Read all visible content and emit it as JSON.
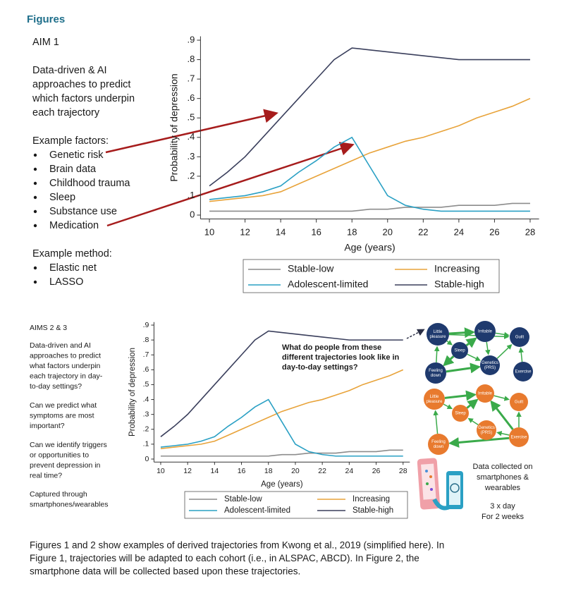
{
  "heading": "Figures",
  "aim1": {
    "title": "AIM 1",
    "description": [
      "Data-driven & AI",
      "approaches to predict",
      "which factors underpin",
      "each trajectory"
    ],
    "factors_title": "Example factors:",
    "factors": [
      "Genetic risk",
      "Brain data",
      "Childhood trauma",
      "Sleep",
      "Substance use",
      "Medication"
    ],
    "method_title": "Example method:",
    "methods": [
      "Elastic net",
      "LASSO"
    ]
  },
  "chart_data": [
    {
      "type": "line",
      "y_label": "Probability of depression",
      "x_label": "Age (years)",
      "x": [
        10,
        11,
        12,
        13,
        14,
        15,
        16,
        17,
        18,
        19,
        20,
        21,
        22,
        23,
        24,
        25,
        26,
        27,
        28
      ],
      "xlim": [
        9.5,
        28.5
      ],
      "xticks": [
        10,
        12,
        14,
        16,
        18,
        20,
        22,
        24,
        26,
        28
      ],
      "ylim": [
        -0.02,
        0.92
      ],
      "yticks": [
        0,
        {
          "value": 0.1,
          "label": ".1"
        },
        {
          "value": 0.2,
          "label": ".2"
        },
        {
          "value": 0.3,
          "label": ".3"
        },
        {
          "value": 0.4,
          "label": ".4"
        },
        {
          "value": 0.5,
          "label": ".5"
        },
        {
          "value": 0.6,
          "label": ".6"
        },
        {
          "value": 0.7,
          "label": ".7"
        },
        {
          "value": 0.8,
          "label": ".8"
        },
        {
          "value": 0.9,
          "label": ".9"
        }
      ],
      "series": [
        {
          "name": "Stable-low",
          "color": "#8c8c8c",
          "values": [
            0.02,
            0.02,
            0.02,
            0.02,
            0.02,
            0.02,
            0.02,
            0.02,
            0.02,
            0.03,
            0.03,
            0.04,
            0.04,
            0.04,
            0.05,
            0.05,
            0.05,
            0.06,
            0.06
          ]
        },
        {
          "name": "Increasing",
          "color": "#e8a33a",
          "values": [
            0.07,
            0.08,
            0.09,
            0.1,
            0.12,
            0.16,
            0.2,
            0.24,
            0.28,
            0.32,
            0.35,
            0.38,
            0.4,
            0.43,
            0.46,
            0.5,
            0.53,
            0.56,
            0.6
          ]
        },
        {
          "name": "Adolescent-limited",
          "color": "#2aa0c4",
          "values": [
            0.08,
            0.09,
            0.1,
            0.12,
            0.15,
            0.22,
            0.28,
            0.35,
            0.4,
            0.25,
            0.1,
            0.05,
            0.03,
            0.02,
            0.02,
            0.02,
            0.02,
            0.02,
            0.02
          ]
        },
        {
          "name": "Stable-high",
          "color": "#3a3f5c",
          "values": [
            0.15,
            0.22,
            0.3,
            0.4,
            0.5,
            0.6,
            0.7,
            0.8,
            0.86,
            0.85,
            0.84,
            0.83,
            0.82,
            0.81,
            0.8,
            0.8,
            0.8,
            0.8,
            0.8
          ]
        }
      ]
    },
    {
      "type": "line",
      "y_label": "Probability of depression",
      "x_label": "Age (years)",
      "annotation": [
        "What do people from these",
        "different trajectories look like in",
        "day-to-day settings?"
      ],
      "x": [
        10,
        11,
        12,
        13,
        14,
        15,
        16,
        17,
        18,
        19,
        20,
        21,
        22,
        23,
        24,
        25,
        26,
        27,
        28
      ],
      "xlim": [
        9.5,
        28.5
      ],
      "xticks": [
        10,
        12,
        14,
        16,
        18,
        20,
        22,
        24,
        26,
        28
      ],
      "ylim": [
        -0.02,
        0.92
      ],
      "yticks": [
        0,
        {
          "value": 0.1,
          "label": ".1"
        },
        {
          "value": 0.2,
          "label": ".2"
        },
        {
          "value": 0.3,
          "label": ".3"
        },
        {
          "value": 0.4,
          "label": ".4"
        },
        {
          "value": 0.5,
          "label": ".5"
        },
        {
          "value": 0.6,
          "label": ".6"
        },
        {
          "value": 0.7,
          "label": ".7"
        },
        {
          "value": 0.8,
          "label": ".8"
        },
        {
          "value": 0.9,
          "label": ".9"
        }
      ],
      "series": [
        {
          "name": "Stable-low",
          "color": "#8c8c8c",
          "values": [
            0.02,
            0.02,
            0.02,
            0.02,
            0.02,
            0.02,
            0.02,
            0.02,
            0.02,
            0.03,
            0.03,
            0.04,
            0.04,
            0.04,
            0.05,
            0.05,
            0.05,
            0.06,
            0.06
          ]
        },
        {
          "name": "Increasing",
          "color": "#e8a33a",
          "values": [
            0.07,
            0.08,
            0.09,
            0.1,
            0.12,
            0.16,
            0.2,
            0.24,
            0.28,
            0.32,
            0.35,
            0.38,
            0.4,
            0.43,
            0.46,
            0.5,
            0.53,
            0.56,
            0.6
          ]
        },
        {
          "name": "Adolescent-limited",
          "color": "#2aa0c4",
          "values": [
            0.08,
            0.09,
            0.1,
            0.12,
            0.15,
            0.22,
            0.28,
            0.35,
            0.4,
            0.25,
            0.1,
            0.05,
            0.03,
            0.02,
            0.02,
            0.02,
            0.02,
            0.02,
            0.02
          ]
        },
        {
          "name": "Stable-high",
          "color": "#3a3f5c",
          "values": [
            0.15,
            0.22,
            0.3,
            0.4,
            0.5,
            0.6,
            0.7,
            0.8,
            0.86,
            0.85,
            0.84,
            0.83,
            0.82,
            0.81,
            0.8,
            0.8,
            0.8,
            0.8,
            0.8
          ]
        }
      ]
    }
  ],
  "aims23": {
    "title": "AIMS 2 & 3",
    "paragraphs": [
      [
        "Data-driven and AI",
        "approaches to predict",
        "what factors underpin",
        "each trajectory in day-",
        "to-day settings?"
      ],
      [
        "Can we predict what",
        "symptoms are most",
        "important?"
      ],
      [
        "Can we identify triggers",
        "or opportunities to",
        "prevent depression in",
        "real time?"
      ],
      [
        "Captured through",
        "smartphones/wearables"
      ]
    ]
  },
  "network": {
    "top": [
      [
        "Little",
        "pleasure"
      ],
      [
        "Irritable"
      ],
      [
        "Guilt"
      ],
      [
        "Sleep"
      ],
      [
        "Genetics",
        "(PRS)"
      ],
      [
        "Feeling",
        "down"
      ],
      [
        "Exercise"
      ]
    ],
    "bottom": [
      [
        "Little",
        "pleasure"
      ],
      [
        "Irritable"
      ],
      [
        "Guilt"
      ],
      [
        "Sleep"
      ],
      [
        "Genetics",
        "(PRS)"
      ],
      [
        "Feeling",
        "down"
      ],
      [
        "Exercise"
      ]
    ]
  },
  "data_collection": {
    "lines": [
      "Data collected on",
      "smartphones &",
      "wearables"
    ],
    "frequency": "3 x day",
    "duration": "For 2 weeks"
  },
  "caption": [
    "Figures 1 and 2 show examples of derived trajectories from Kwong et al., 2019 (simplified here). In",
    "Figure 1, trajectories will be adapted to each cohort (i.e., in ALSPAC, ABCD). In Figure 2, the",
    "smartphone data will be collected based upon these trajectories."
  ]
}
